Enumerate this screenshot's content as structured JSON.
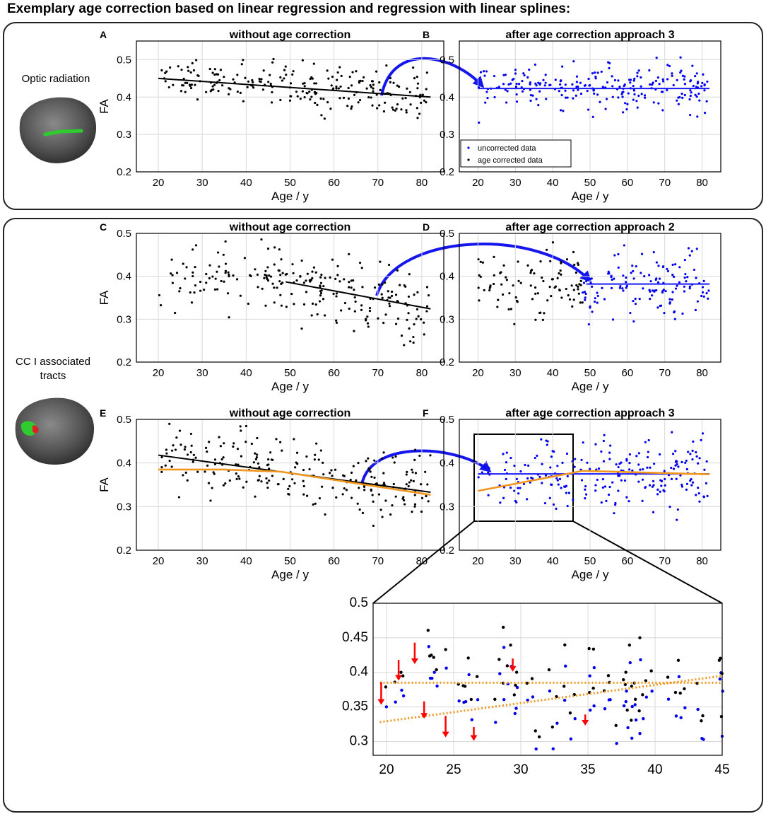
{
  "figure": {
    "title": "Exemplary age correction based on linear regression and regression with linear splines:"
  },
  "sections": {
    "top": {
      "tract_label": "Optic radiation"
    },
    "bottom": {
      "tract_label": "CC I associated tracts"
    }
  },
  "legend": {
    "uncorrected": "uncorrected data",
    "corrected": "age corrected data"
  },
  "colors": {
    "raw": "#000000",
    "corrected": "#0000ee",
    "fit_linear": "#000000",
    "fit_corrected": "#1a1aff",
    "spline": "#f0961e",
    "arrow": "#1515ee",
    "correction_arrow": "#ff0000"
  },
  "chart_data": [
    {
      "id": "A",
      "letter": "A",
      "type": "scatter",
      "title": "without age correction",
      "xlabel": "Age / y",
      "ylabel": "FA",
      "xlim": [
        15,
        85
      ],
      "ylim": [
        0.2,
        0.55
      ],
      "xticks": [
        20,
        30,
        40,
        50,
        60,
        70,
        80
      ],
      "yticks": [
        0.2,
        0.3,
        0.4,
        0.5
      ],
      "grid": true,
      "fits": [
        {
          "kind": "linear",
          "x": [
            20,
            82
          ],
          "y": [
            0.45,
            0.4
          ],
          "color": "#000000"
        }
      ]
    },
    {
      "id": "B",
      "letter": "B",
      "type": "scatter",
      "title": "after age correction approach 3",
      "xlabel": "Age / y",
      "ylabel": "",
      "xlim": [
        15,
        85
      ],
      "ylim": [
        0.2,
        0.55
      ],
      "xticks": [
        20,
        30,
        40,
        50,
        60,
        70,
        80
      ],
      "yticks": [
        0.2,
        0.3,
        0.4,
        0.5
      ],
      "grid": true,
      "legend": "bottom-left",
      "fits": [
        {
          "kind": "flat",
          "x": [
            20,
            82
          ],
          "y": [
            0.423,
            0.423
          ],
          "color": "#1a1aff"
        }
      ]
    },
    {
      "id": "C",
      "letter": "C",
      "type": "scatter",
      "title": "without age correction",
      "xlabel": "Age / y",
      "ylabel": "FA",
      "xlim": [
        15,
        85
      ],
      "ylim": [
        0.2,
        0.5
      ],
      "xticks": [
        20,
        30,
        40,
        50,
        60,
        70,
        80
      ],
      "yticks": [
        0.2,
        0.3,
        0.4,
        0.5
      ],
      "grid": true,
      "fits": [
        {
          "kind": "linear",
          "x": [
            49,
            82
          ],
          "y": [
            0.387,
            0.324
          ],
          "color": "#000000"
        }
      ]
    },
    {
      "id": "D",
      "letter": "D",
      "type": "scatter",
      "title": "after age correction approach 2",
      "xlabel": "Age / y",
      "ylabel": "",
      "xlim": [
        15,
        85
      ],
      "ylim": [
        0.2,
        0.5
      ],
      "xticks": [
        20,
        30,
        40,
        50,
        60,
        70,
        80
      ],
      "yticks": [
        0.2,
        0.3,
        0.4,
        0.5
      ],
      "grid": true,
      "fits": [
        {
          "kind": "flat",
          "x": [
            49,
            82
          ],
          "y": [
            0.382,
            0.382
          ],
          "color": "#1a1aff"
        }
      ]
    },
    {
      "id": "E",
      "letter": "E",
      "type": "scatter",
      "title": "without age correction",
      "xlabel": "Age / y",
      "ylabel": "FA",
      "xlim": [
        15,
        85
      ],
      "ylim": [
        0.2,
        0.5
      ],
      "xticks": [
        20,
        30,
        40,
        50,
        60,
        70,
        80
      ],
      "yticks": [
        0.2,
        0.3,
        0.4,
        0.5
      ],
      "grid": true,
      "fits": [
        {
          "kind": "linear",
          "x": [
            20,
            82
          ],
          "y": [
            0.418,
            0.333
          ],
          "color": "#000000"
        },
        {
          "kind": "spline",
          "x": [
            20,
            35,
            48,
            82
          ],
          "y": [
            0.385,
            0.385,
            0.38,
            0.327
          ],
          "color": "#f0961e"
        }
      ]
    },
    {
      "id": "F",
      "letter": "F",
      "type": "scatter",
      "title": "after age correction approach 3",
      "xlabel": "Age / y",
      "ylabel": "",
      "xlim": [
        15,
        85
      ],
      "ylim": [
        0.2,
        0.5
      ],
      "xticks": [
        20,
        30,
        40,
        50,
        60,
        70,
        80
      ],
      "yticks": [
        0.2,
        0.3,
        0.4,
        0.5
      ],
      "grid": true,
      "fits": [
        {
          "kind": "flat",
          "x": [
            20,
            82
          ],
          "y": [
            0.375,
            0.375
          ],
          "color": "#1a1aff"
        },
        {
          "kind": "spline",
          "x": [
            20,
            45,
            48,
            82
          ],
          "y": [
            0.336,
            0.377,
            0.382,
            0.374
          ],
          "color": "#f0961e"
        }
      ]
    },
    {
      "id": "Z",
      "letter": "",
      "type": "scatter",
      "title": "",
      "xlabel": "",
      "ylabel": "",
      "xlim": [
        19,
        45
      ],
      "ylim": [
        0.28,
        0.5
      ],
      "xticks": [
        20,
        25,
        30,
        35,
        40,
        45
      ],
      "yticks": [
        0.3,
        0.35,
        0.4,
        0.45,
        0.5
      ],
      "grid": true,
      "fits": [
        {
          "kind": "dotted",
          "x": [
            19.5,
            45
          ],
          "y": [
            0.385,
            0.385
          ],
          "color": "#f0961e"
        },
        {
          "kind": "dotted",
          "x": [
            19.5,
            45
          ],
          "y": [
            0.328,
            0.395
          ],
          "color": "#f0961e"
        }
      ],
      "corrections": [
        {
          "x": 19.6,
          "from": 0.386,
          "to": 0.353
        },
        {
          "x": 20.9,
          "from": 0.418,
          "to": 0.388
        },
        {
          "x": 22.1,
          "from": 0.443,
          "to": 0.412
        },
        {
          "x": 22.8,
          "from": 0.358,
          "to": 0.333
        },
        {
          "x": 24.4,
          "from": 0.337,
          "to": 0.306
        },
        {
          "x": 26.5,
          "from": 0.321,
          "to": 0.301
        },
        {
          "x": 29.4,
          "from": 0.42,
          "to": 0.401
        },
        {
          "x": 34.8,
          "from": 0.339,
          "to": 0.323
        }
      ]
    }
  ]
}
